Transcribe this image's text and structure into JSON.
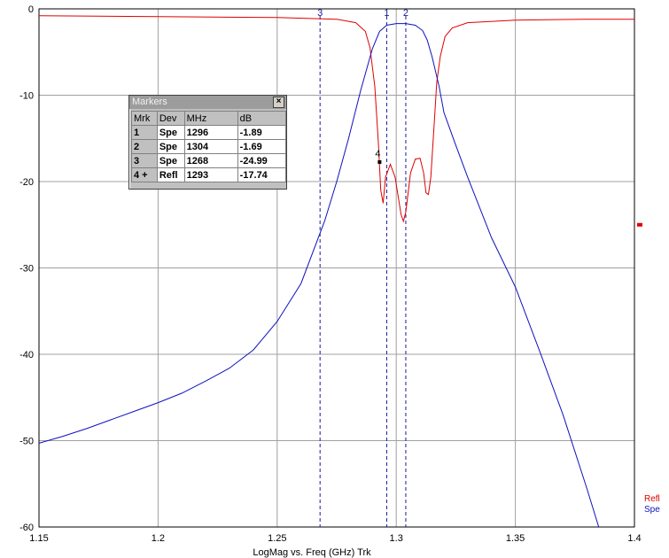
{
  "chart_data": {
    "type": "line",
    "xlabel": "LogMag vs. Freq (GHz)  Trk",
    "xlim": [
      1.15,
      1.4
    ],
    "ylim": [
      -60,
      0
    ],
    "x_ticks": [
      "1.15",
      "1.2",
      "1.25",
      "1.3",
      "1.35",
      "1.4"
    ],
    "y_ticks": [
      "0",
      "-10",
      "-20",
      "-30",
      "-40",
      "-50",
      "-60"
    ],
    "grid": true,
    "legend_position": "bottom-right",
    "series": [
      {
        "name": "Refl",
        "color": "#e00000",
        "points": [
          [
            1.15,
            -0.8
          ],
          [
            1.2,
            -0.9
          ],
          [
            1.25,
            -1.0
          ],
          [
            1.275,
            -1.2
          ],
          [
            1.283,
            -1.6
          ],
          [
            1.287,
            -2.6
          ],
          [
            1.289,
            -4.5
          ],
          [
            1.291,
            -9.0
          ],
          [
            1.2925,
            -15.5
          ],
          [
            1.2935,
            -21.0
          ],
          [
            1.2945,
            -22.5
          ],
          [
            1.2955,
            -19.5
          ],
          [
            1.2975,
            -18.0
          ],
          [
            1.2995,
            -19.5
          ],
          [
            1.302,
            -23.8
          ],
          [
            1.303,
            -24.6
          ],
          [
            1.304,
            -23.5
          ],
          [
            1.306,
            -19.0
          ],
          [
            1.308,
            -17.4
          ],
          [
            1.31,
            -17.3
          ],
          [
            1.3115,
            -19.0
          ],
          [
            1.3125,
            -21.3
          ],
          [
            1.3135,
            -21.5
          ],
          [
            1.3145,
            -19.5
          ],
          [
            1.316,
            -13.0
          ],
          [
            1.317,
            -8.5
          ],
          [
            1.3185,
            -5.5
          ],
          [
            1.3205,
            -3.2
          ],
          [
            1.3235,
            -2.2
          ],
          [
            1.33,
            -1.6
          ],
          [
            1.35,
            -1.3
          ],
          [
            1.38,
            -1.2
          ],
          [
            1.4,
            -1.2
          ]
        ]
      },
      {
        "name": "Spe",
        "color": "#1010c0",
        "points": [
          [
            1.15,
            -50.3
          ],
          [
            1.16,
            -49.5
          ],
          [
            1.17,
            -48.6
          ],
          [
            1.18,
            -47.6
          ],
          [
            1.19,
            -46.6
          ],
          [
            1.2,
            -45.6
          ],
          [
            1.21,
            -44.5
          ],
          [
            1.22,
            -43.1
          ],
          [
            1.23,
            -41.6
          ],
          [
            1.24,
            -39.5
          ],
          [
            1.25,
            -36.2
          ],
          [
            1.26,
            -31.8
          ],
          [
            1.27,
            -24.5
          ],
          [
            1.275,
            -20.0
          ],
          [
            1.28,
            -15.0
          ],
          [
            1.285,
            -9.5
          ],
          [
            1.29,
            -4.6
          ],
          [
            1.293,
            -2.6
          ],
          [
            1.296,
            -1.9
          ],
          [
            1.3,
            -1.7
          ],
          [
            1.304,
            -1.7
          ],
          [
            1.308,
            -1.9
          ],
          [
            1.311,
            -2.5
          ],
          [
            1.313,
            -3.6
          ],
          [
            1.315,
            -5.5
          ],
          [
            1.318,
            -9.0
          ],
          [
            1.32,
            -12.0
          ],
          [
            1.325,
            -15.8
          ],
          [
            1.33,
            -19.5
          ],
          [
            1.34,
            -26.5
          ],
          [
            1.35,
            -32.2
          ],
          [
            1.36,
            -39.5
          ],
          [
            1.37,
            -47.0
          ],
          [
            1.38,
            -55.5
          ],
          [
            1.385,
            -60.0
          ]
        ]
      }
    ],
    "vertical_markers": [
      {
        "label": "3",
        "x": 1.268
      },
      {
        "label": "1",
        "x": 1.296
      },
      {
        "label": "2",
        "x": 1.304
      }
    ],
    "refl_marker": {
      "label": "4",
      "x": 1.293,
      "y": -17.74
    },
    "right_edge_indicator_y": -25
  },
  "markers_window": {
    "title": "Markers",
    "close_glyph": "×",
    "headers": [
      "Mrk",
      "Dev",
      "MHz",
      "dB"
    ],
    "rows": [
      [
        "1",
        "Spe",
        "1296",
        "-1.89"
      ],
      [
        "2",
        "Spe",
        "1304",
        "-1.69"
      ],
      [
        "3",
        "Spe",
        "1268",
        "-24.99"
      ],
      [
        "4 +",
        "Refl",
        "1293",
        "-17.74"
      ]
    ]
  }
}
